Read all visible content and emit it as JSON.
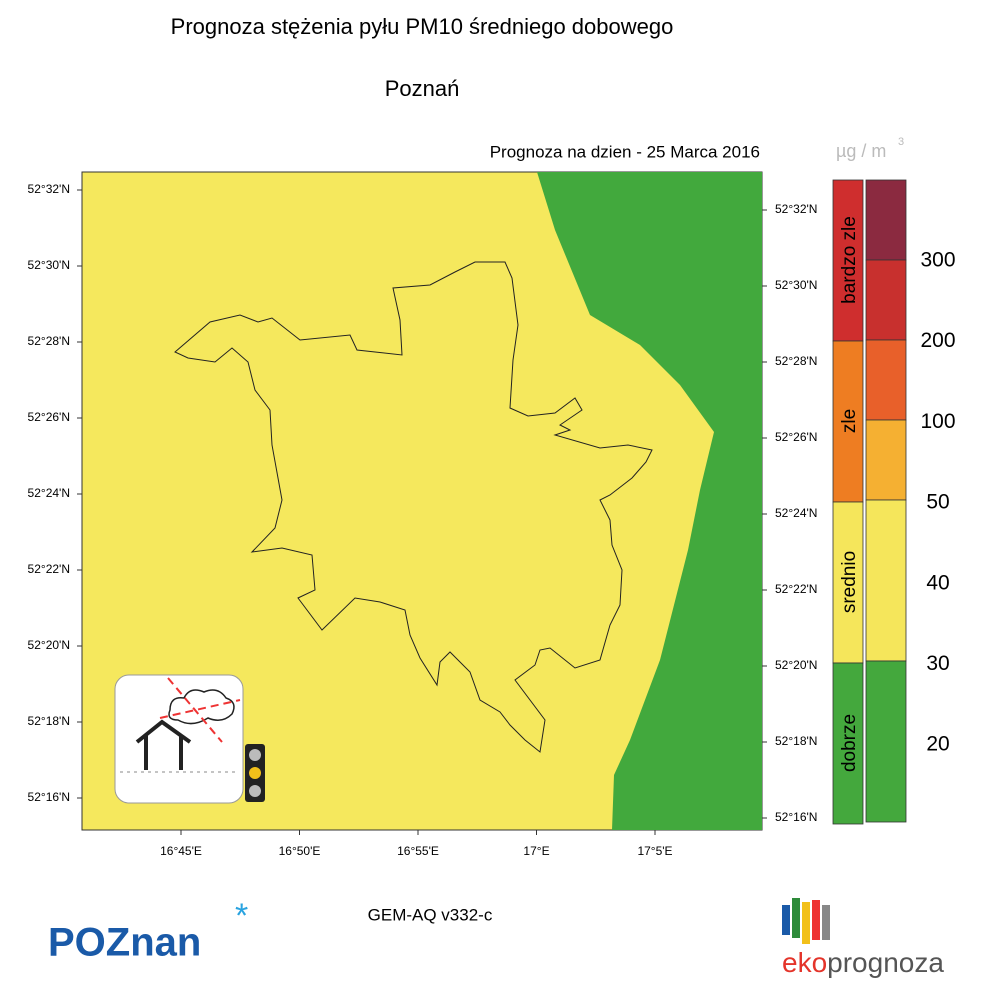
{
  "header": {
    "title": "Prognoza stężenia pyłu PM10 średniego dobowego",
    "subtitle": "Poznań"
  },
  "map": {
    "date_label": "Prognoza na dzien -  25 Marca 2016",
    "lat_labels_left": [
      "52°32'N",
      "52°30'N",
      "52°28'N",
      "52°26'N",
      "52°24'N",
      "52°22'N",
      "52°20'N",
      "52°18'N",
      "52°16'N"
    ],
    "lat_labels_right": [
      "52°32'N",
      "52°30'N",
      "52°28'N",
      "52°26'N",
      "52°24'N",
      "52°22'N",
      "52°20'N",
      "52°18'N",
      "52°16'N"
    ],
    "lon_labels": [
      "16°45'E",
      "16°50'E",
      "16°55'E",
      "17°E",
      "17°5'E"
    ]
  },
  "legend": {
    "unit": "µg / m",
    "unit_exponent": "3",
    "categories": [
      {
        "label": "bardzo zle",
        "color": "#cf2e2e"
      },
      {
        "label": "zle",
        "color": "#ee7d22"
      },
      {
        "label": "srednio",
        "color": "#f5e65b"
      },
      {
        "label": "dobrze",
        "color": "#44a83d"
      }
    ],
    "scale_colors": [
      "#8b2a40",
      "#c8302e",
      "#e8602a",
      "#f5b032",
      "#f5e65b",
      "#44a83d"
    ],
    "scale_labels": [
      "300",
      "200",
      "100",
      "50",
      "40",
      "30",
      "20"
    ]
  },
  "footer": {
    "model": "GEM-AQ v332-c",
    "left_logo": "POZnan",
    "right_logo_a": "eko",
    "right_logo_b": "prognoza"
  }
}
